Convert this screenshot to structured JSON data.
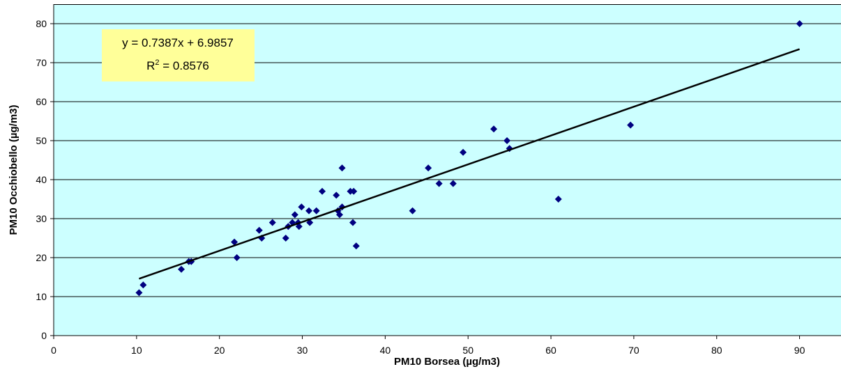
{
  "chart_data": {
    "type": "scatter",
    "xlabel": "PM10 Borsea (µg/m3)",
    "ylabel": "PM10 Occhiobello (µg/m3)",
    "xlim": [
      0,
      95
    ],
    "ylim": [
      0,
      85
    ],
    "xticks": [
      0,
      10,
      20,
      30,
      40,
      50,
      60,
      70,
      80,
      90
    ],
    "yticks": [
      0,
      10,
      20,
      30,
      40,
      50,
      60,
      70,
      80
    ],
    "grid": "horizontal",
    "colors": {
      "plot_background": "#ccffff",
      "marker": "#000080",
      "trendline": "#000000",
      "equation_box": "#ffff99"
    },
    "series": [
      {
        "points": [
          [
            10.3,
            11
          ],
          [
            10.8,
            13
          ],
          [
            15.4,
            17
          ],
          [
            16.3,
            19
          ],
          [
            16.6,
            19
          ],
          [
            21.8,
            24
          ],
          [
            22.1,
            20
          ],
          [
            24.8,
            27
          ],
          [
            25.1,
            25
          ],
          [
            26.4,
            29
          ],
          [
            28.0,
            25
          ],
          [
            28.3,
            28
          ],
          [
            28.8,
            29
          ],
          [
            29.1,
            31
          ],
          [
            29.5,
            29
          ],
          [
            29.6,
            28
          ],
          [
            29.9,
            33
          ],
          [
            30.8,
            32
          ],
          [
            30.9,
            29
          ],
          [
            31.7,
            32
          ],
          [
            32.4,
            37
          ],
          [
            34.1,
            36
          ],
          [
            34.3,
            32
          ],
          [
            34.5,
            31
          ],
          [
            34.8,
            33
          ],
          [
            34.8,
            43
          ],
          [
            35.8,
            37
          ],
          [
            36.1,
            29
          ],
          [
            36.2,
            37
          ],
          [
            36.5,
            23
          ],
          [
            43.3,
            32
          ],
          [
            45.2,
            43
          ],
          [
            46.5,
            39
          ],
          [
            48.2,
            39
          ],
          [
            49.4,
            47
          ],
          [
            53.1,
            53
          ],
          [
            54.7,
            50
          ],
          [
            55.0,
            48
          ],
          [
            60.9,
            35
          ],
          [
            69.6,
            54
          ],
          [
            90.0,
            80
          ]
        ]
      }
    ],
    "trendline": {
      "slope": 0.7387,
      "intercept": 6.9857,
      "x_range": [
        10.3,
        90.0
      ],
      "equation": "y = 0.7387x + 6.9857",
      "r2_label": "R",
      "r2_sup": "2",
      "r2_value": " = 0.8576"
    }
  }
}
